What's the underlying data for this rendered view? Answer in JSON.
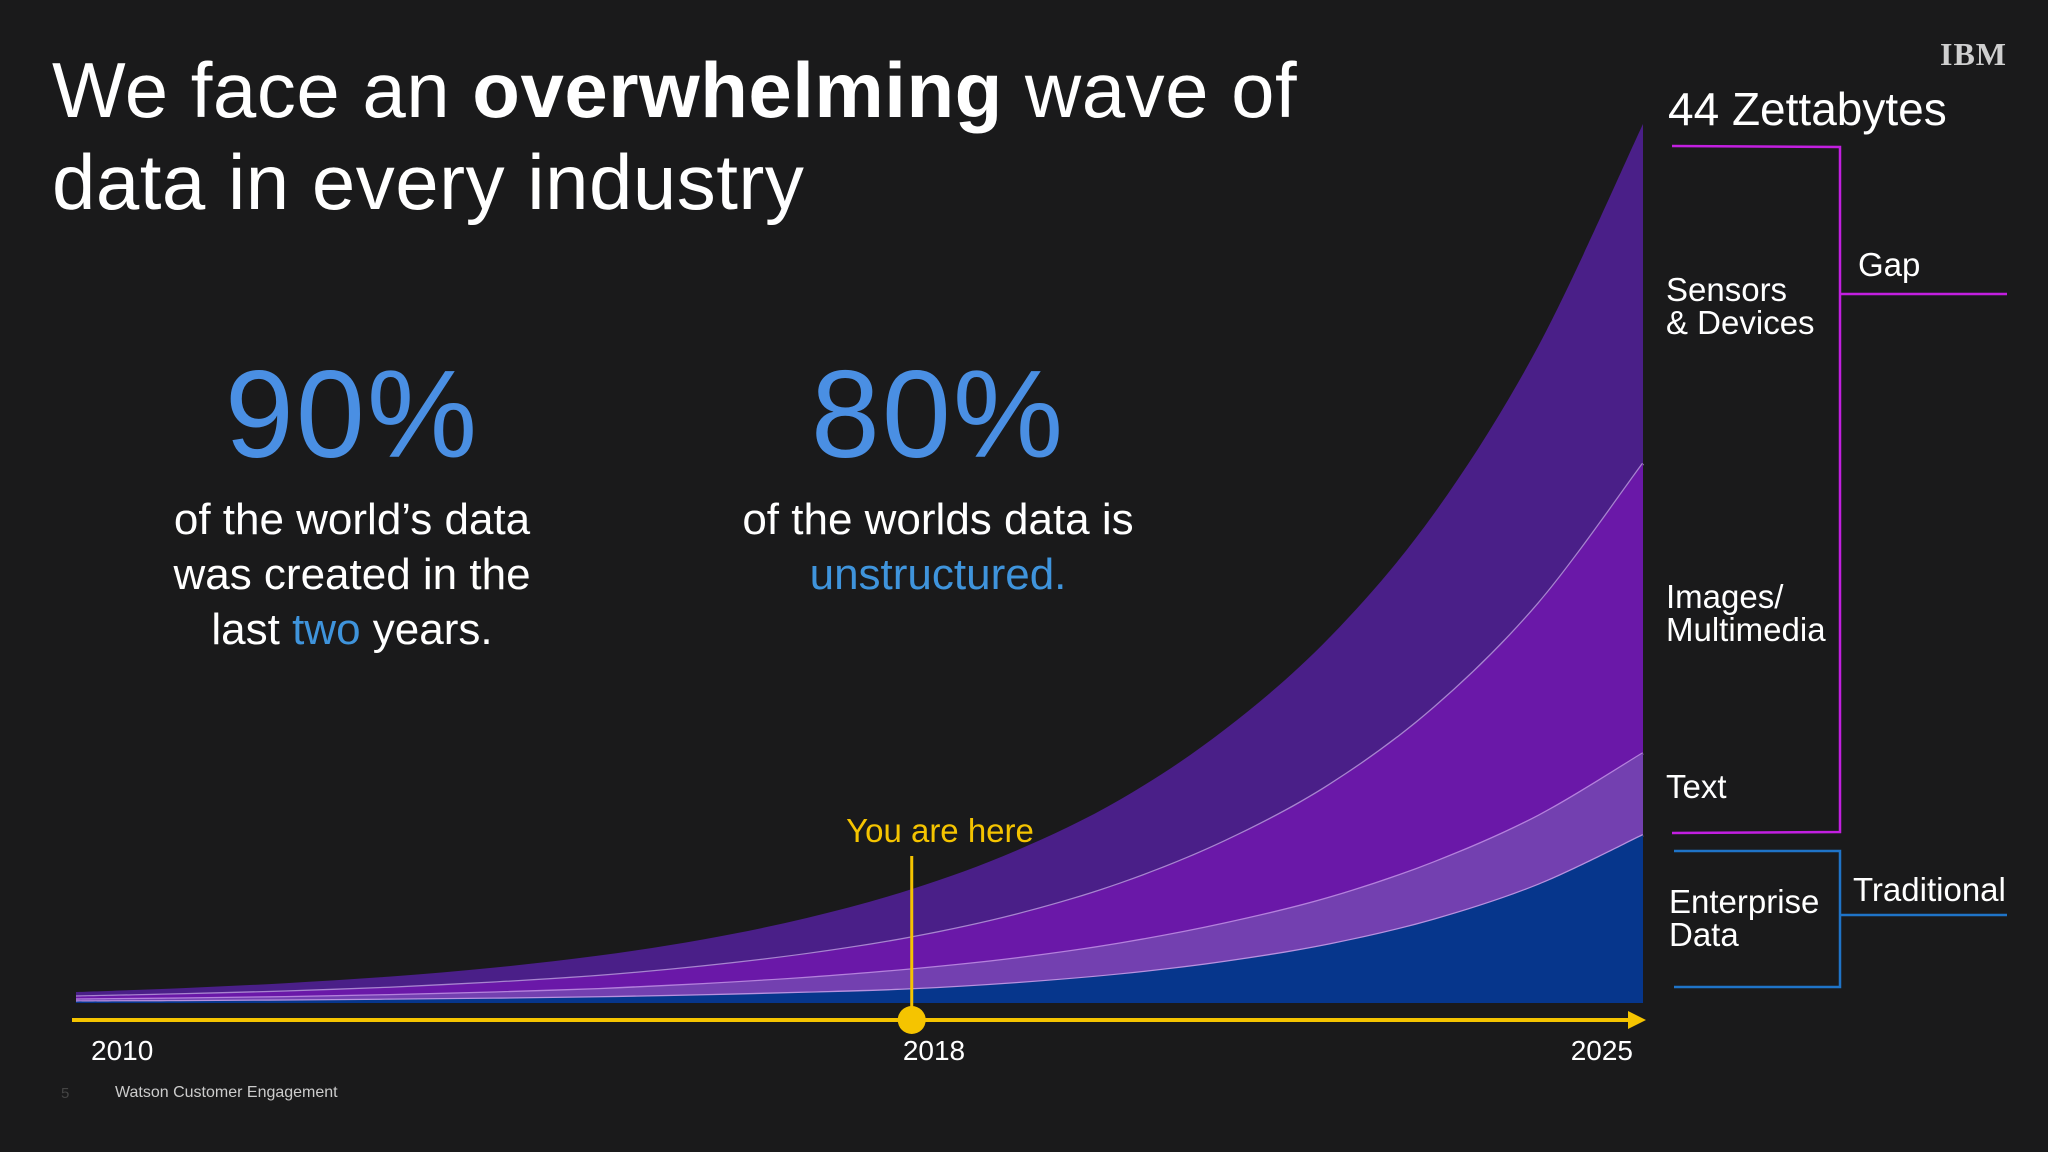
{
  "logo": "IBM",
  "title": {
    "part1": "We face an ",
    "bold": "overwhelming",
    "part2": " wave of",
    "line2": "data in every industry"
  },
  "stats": [
    {
      "value": "90%",
      "line1": "of the world’s data",
      "line2": "was created in the",
      "line3_pre": "last ",
      "line3_hl": "two",
      "line3_post": " years."
    },
    {
      "value": "80%",
      "line1": "of the worlds data is",
      "line2_hl": "unstructured."
    }
  ],
  "right_panel": {
    "total": "44 Zettabytes",
    "labels": {
      "sensors": [
        "Sensors",
        "& Devices"
      ],
      "images": [
        "Images/",
        "Multimedia"
      ],
      "text": "Text",
      "enterprise": [
        "Enterprise",
        "Data"
      ]
    },
    "brackets": {
      "gap": "Gap",
      "traditional": "Traditional"
    },
    "colors": {
      "gap": "#c21fe0",
      "traditional": "#1f74c8"
    }
  },
  "marker": {
    "label": "You are here",
    "year": 2018,
    "color": "#f5c400"
  },
  "footer": {
    "page": "5",
    "text": "Watson Customer Engagement"
  },
  "chart_data": {
    "type": "area",
    "stacked": true,
    "x": [
      2010,
      2011,
      2012,
      2013,
      2014,
      2015,
      2016,
      2017,
      2018,
      2019,
      2020,
      2021,
      2022,
      2023,
      2024,
      2025
    ],
    "x_tick_labels": [
      "2010",
      "2018",
      "2025"
    ],
    "ylim": [
      0,
      44
    ],
    "grid": false,
    "series": [
      {
        "name": "Enterprise Data",
        "color": "#06368c",
        "values": [
          0.07,
          0.09,
          0.12,
          0.16,
          0.21,
          0.28,
          0.38,
          0.51,
          0.68,
          0.99,
          1.43,
          2.06,
          2.93,
          4.17,
          5.92,
          8.4
        ]
      },
      {
        "name": "Text",
        "color": "#7340b0",
        "values": [
          0.1,
          0.13,
          0.17,
          0.23,
          0.31,
          0.41,
          0.56,
          0.75,
          1.0,
          1.24,
          1.55,
          1.92,
          2.34,
          2.87,
          3.45,
          4.1
        ]
      },
      {
        "name": "Images/Multimedia",
        "color": "#6a18a8",
        "values": [
          0.15,
          0.21,
          0.28,
          0.37,
          0.5,
          0.66,
          0.89,
          1.19,
          1.6,
          2.19,
          3.0,
          4.12,
          5.65,
          7.74,
          10.63,
          14.5
        ]
      },
      {
        "name": "Sensors & Devices",
        "color": "#4a1f88",
        "values": [
          0.23,
          0.31,
          0.42,
          0.56,
          0.75,
          1.02,
          1.35,
          1.81,
          2.42,
          3.21,
          4.22,
          5.6,
          7.38,
          9.72,
          12.9,
          17.0
        ]
      }
    ]
  }
}
